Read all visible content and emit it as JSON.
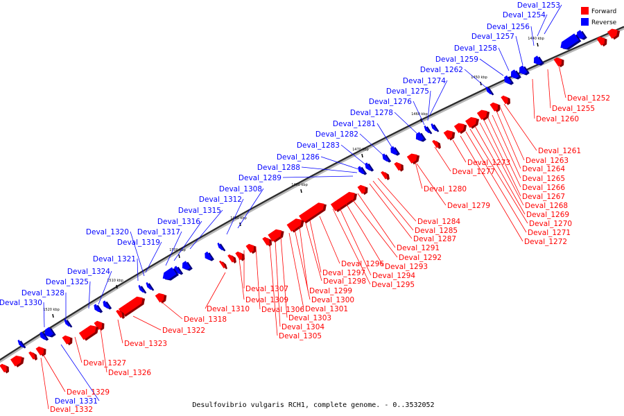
{
  "caption": "Desulfovibrio vulgaris RCH1, complete genome. - 0..3532052",
  "legend": [
    {
      "label": "Forward",
      "color": "#ff0000"
    },
    {
      "label": "Reverse",
      "color": "#0000ff"
    }
  ],
  "ticks": [
    "1440 kbp",
    "1450 kbp",
    "1460 kbp",
    "1470 kbp",
    "1480 kbp",
    "1490 kbp",
    "1500 kbp",
    "1510 kbp",
    "1520 kbp"
  ],
  "reverse_genes": [
    "Deval_1253",
    "Deval_1254",
    "Deval_1256",
    "Deval_1257",
    "Deval_1258",
    "Deval_1259",
    "Deval_1262",
    "Deval_1274",
    "Deval_1275",
    "Deval_1276",
    "Deval_1278",
    "Deval_1281",
    "Deval_1282",
    "Deval_1283",
    "Deval_1286",
    "Deval_1288",
    "Deval_1289",
    "Deval_1308",
    "Deval_1312",
    "Deval_1315",
    "Deval_1316",
    "Deval_1317",
    "Deval_1319",
    "Deval_1320",
    "Deval_1321",
    "Deval_1324",
    "Deval_1325",
    "Deval_1328",
    "Deval_1330",
    "Deval_1331"
  ],
  "forward_genes": [
    "Deval_1252",
    "Deval_1255",
    "Deval_1260",
    "Deval_1261",
    "Deval_1263",
    "Deval_1264",
    "Deval_1265",
    "Deval_1266",
    "Deval_1267",
    "Deval_1268",
    "Deval_1269",
    "Deval_1270",
    "Deval_1271",
    "Deval_1272",
    "Deval_1273",
    "Deval_1277",
    "Deval_1279",
    "Deval_1280",
    "Deval_1284",
    "Deval_1285",
    "Deval_1287",
    "Deval_1291",
    "Deval_1292",
    "Deval_1293",
    "Deval_1294",
    "Deval_1295",
    "Deval_1296",
    "Deval_1297",
    "Deval_1298",
    "Deval_1299",
    "Deval_1300",
    "Deval_1301",
    "Deval_1303",
    "Deval_1304",
    "Deval_1305",
    "Deval_1306",
    "Deval_1307",
    "Deval_1309",
    "Deval_1310",
    "Deval_1318",
    "Deval_1322",
    "Deval_1323",
    "Deval_1326",
    "Deval_1327",
    "Deval_1329",
    "Deval_1332"
  ]
}
